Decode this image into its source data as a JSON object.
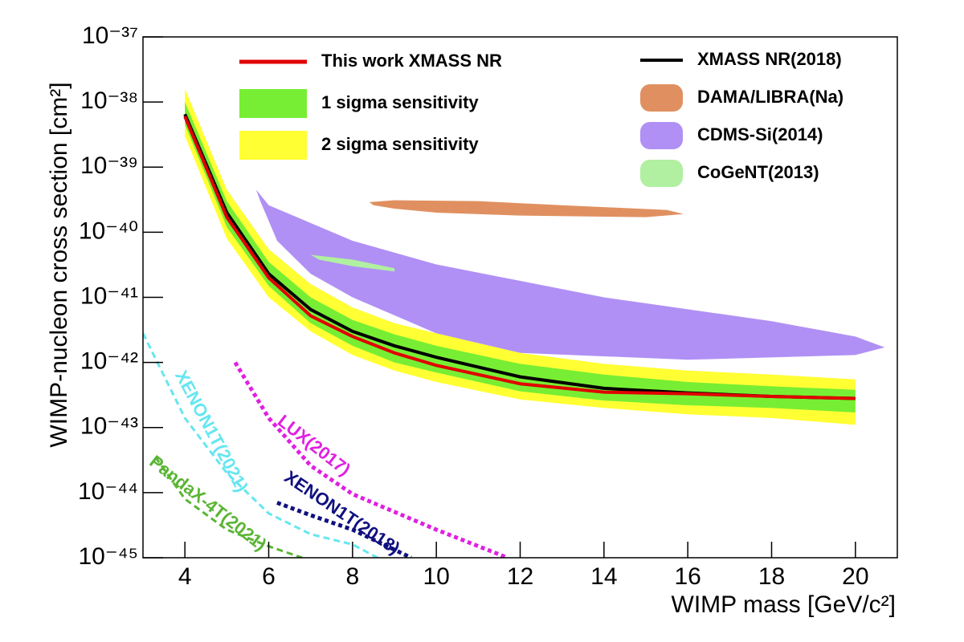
{
  "chart_data": {
    "type": "line",
    "log_y": true,
    "xlabel": "WIMP mass [GeV/c²]",
    "ylabel": "WIMP-nucleon cross section [cm²]",
    "xlim": [
      3,
      21
    ],
    "ylim": [
      1e-45,
      1e-37
    ],
    "xticks": [
      4,
      6,
      8,
      10,
      12,
      14,
      16,
      18,
      20
    ],
    "yticks": [
      {
        "value": 1e-45,
        "label": "10⁻⁴⁵"
      },
      {
        "value": 1e-44,
        "label": "10⁻⁴⁴"
      },
      {
        "value": 1e-43,
        "label": "10⁻⁴³"
      },
      {
        "value": 1e-42,
        "label": "10⁻⁴²"
      },
      {
        "value": 1e-41,
        "label": "10⁻⁴¹"
      },
      {
        "value": 1e-40,
        "label": "10⁻⁴⁰"
      },
      {
        "value": 1e-39,
        "label": "10⁻³⁹"
      },
      {
        "value": 1e-38,
        "label": "10⁻³⁸"
      },
      {
        "value": 1e-37,
        "label": "10⁻³⁷"
      }
    ],
    "x": [
      4,
      5,
      6,
      7,
      8,
      9,
      10,
      12,
      14,
      16,
      18,
      20
    ],
    "bands": [
      {
        "name": "2 sigma sensitivity",
        "color": "#ffff33",
        "lower": [
          3e-39,
          8e-41,
          1e-41,
          3e-42,
          1.3e-42,
          7.5e-43,
          5e-43,
          2.7e-43,
          2e-43,
          1.6e-43,
          1.4e-43,
          1.1e-43
        ],
        "upper": [
          1.6e-38,
          4.5e-40,
          5.5e-41,
          1.6e-41,
          7e-42,
          4e-42,
          2.8e-42,
          1.4e-42,
          9.5e-43,
          7.5e-43,
          6.5e-43,
          5.5e-43
        ]
      },
      {
        "name": "1 sigma sensitivity",
        "color": "#77ee33",
        "lower": [
          4.5e-39,
          1.2e-40,
          1.5e-41,
          4e-42,
          1.8e-42,
          1e-42,
          7e-43,
          3.6e-43,
          2.6e-43,
          2.2e-43,
          2e-43,
          1.7e-43
        ],
        "upper": [
          1e-38,
          3e-40,
          3.5e-41,
          1e-41,
          4.5e-42,
          2.7e-42,
          1.8e-42,
          9.5e-43,
          6.5e-43,
          5e-43,
          4.3e-43,
          3.8e-43
        ]
      }
    ],
    "series": [
      {
        "name": "XMASS NR(2018)",
        "color": "#000000",
        "values": [
          6.5e-39,
          2e-40,
          2.3e-41,
          6.5e-42,
          3e-42,
          1.8e-42,
          1.2e-42,
          6e-43,
          4e-43,
          3.4e-43,
          3e-43,
          2.8e-43
        ]
      },
      {
        "name": "This work XMASS NR",
        "color": "#e00000",
        "values": [
          6e-39,
          1.7e-40,
          2e-41,
          5.2e-42,
          2.5e-42,
          1.4e-42,
          9e-43,
          4.7e-43,
          3.5e-43,
          3.3e-43,
          3e-43,
          2.8e-43
        ]
      }
    ],
    "regions": [
      {
        "name": "DAMA/LIBRA(Na)",
        "color": "#e09060",
        "x": [
          8.4,
          9,
          11,
          13,
          15.5,
          15.9,
          15,
          12,
          10,
          9,
          8.5
        ],
        "y": [
          2.9e-40,
          3.1e-40,
          3e-40,
          2.6e-40,
          2.2e-40,
          1.9e-40,
          1.7e-40,
          1.8e-40,
          2e-40,
          2.3e-40,
          2.6e-40
        ]
      },
      {
        "name": "CDMS-Si(2014)",
        "color": "#b090f5",
        "x": [
          5.7,
          6,
          8,
          10,
          14,
          18,
          20,
          20.7,
          20,
          16,
          12,
          10,
          8,
          7,
          6.2,
          5.8
        ],
        "y": [
          4.5e-40,
          2.6e-40,
          7.4e-41,
          3.2e-41,
          1e-41,
          4.3e-42,
          2.5e-42,
          1.7e-42,
          1.3e-42,
          1.1e-42,
          1.4e-42,
          2.8e-42,
          1e-41,
          2.3e-41,
          7.4e-41,
          3e-40
        ]
      },
      {
        "name": "CoGeNT(2013)",
        "color": "#b0f0a0",
        "x": [
          7,
          8,
          9,
          9,
          8,
          7.2
        ],
        "y": [
          4.5e-41,
          3.8e-41,
          2.8e-41,
          2.5e-41,
          3e-41,
          3.8e-41
        ]
      }
    ],
    "limits": [
      {
        "name": "XENON1T(2021)",
        "color": "#66e6f0",
        "style": "dashed",
        "x": [
          3,
          4,
          5,
          6,
          7,
          8,
          8.6
        ],
        "y": [
          2.8e-42,
          1.4e-43,
          2e-44,
          4.8e-45,
          2.3e-45,
          1.6e-45,
          1e-45
        ]
      },
      {
        "name": "PandaX-4T(2021)",
        "color": "#5ab534",
        "style": "dashed",
        "x": [
          3.3,
          4,
          5,
          6,
          6.8
        ],
        "y": [
          3.5e-44,
          8e-45,
          2.7e-45,
          1.5e-45,
          1e-45
        ]
      },
      {
        "name": "LUX(2017)",
        "color": "#e020e0",
        "style": "dotted",
        "x": [
          5.2,
          6,
          7,
          8,
          10,
          11.7
        ],
        "y": [
          1e-42,
          1.4e-43,
          2.6e-44,
          9.5e-45,
          2.7e-45,
          1e-45
        ]
      },
      {
        "name": "XENON1T(2018)",
        "color": "#101080",
        "style": "dotted",
        "x": [
          6.2,
          7,
          8,
          9.4
        ],
        "y": [
          7e-45,
          4.5e-45,
          2.7e-45,
          1e-45
        ]
      }
    ]
  }
}
